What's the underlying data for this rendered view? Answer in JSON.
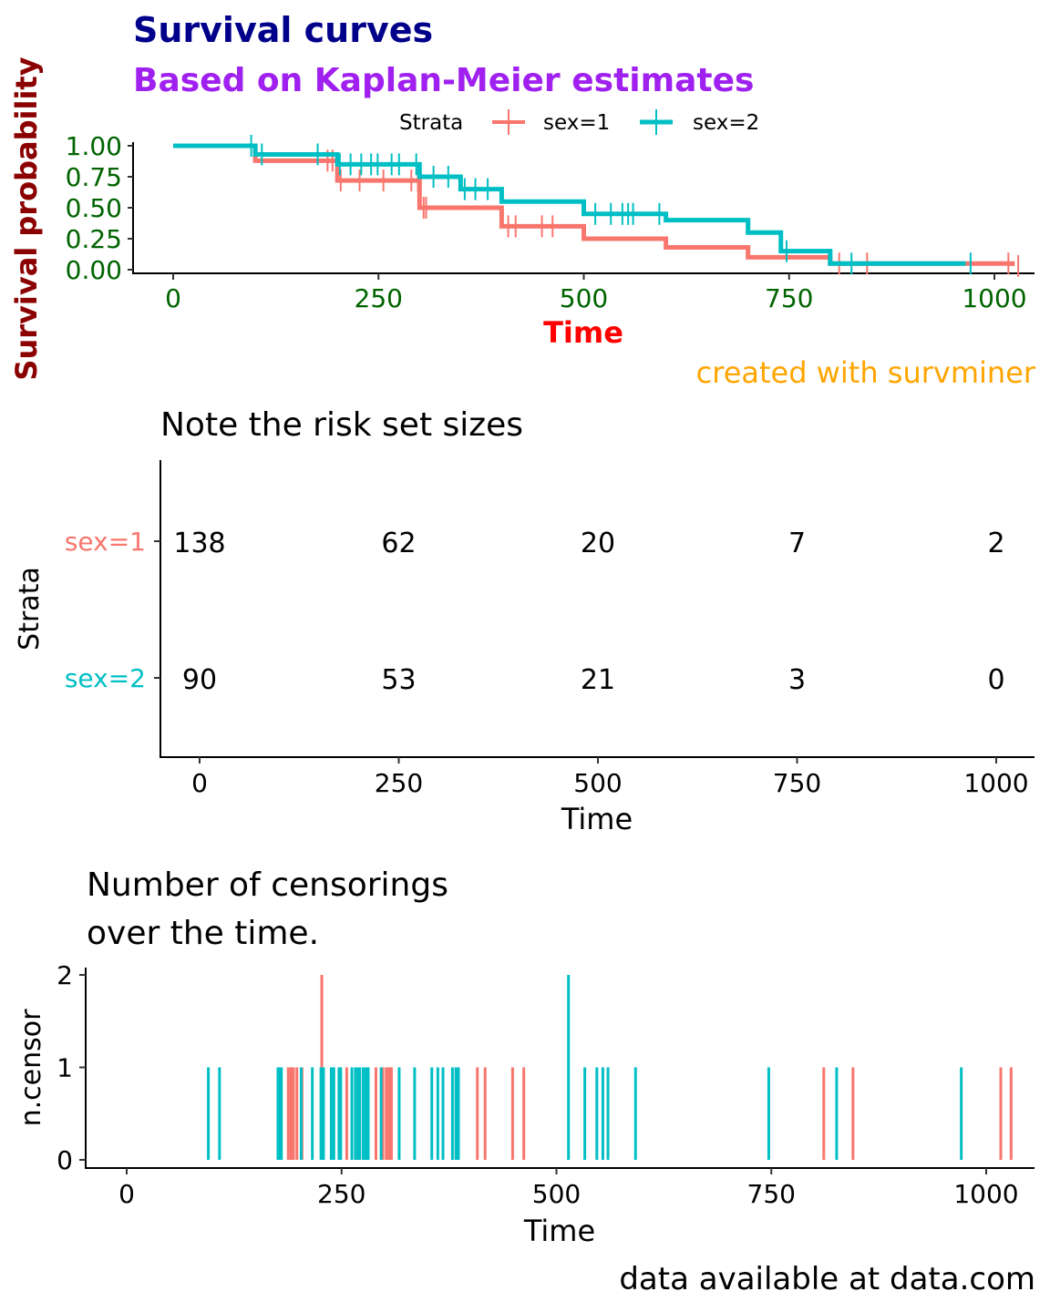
{
  "colors": {
    "sex1": "#F8766D",
    "sex2": "#00BFC4",
    "title": "#00008B",
    "subtitle": "#A020F0",
    "ylabel": "#8B0000",
    "ticks": "#006400",
    "xlabel": "#FF0000",
    "caption": "#FFA500"
  },
  "chart_data": [
    {
      "type": "line",
      "title": "Survival curves",
      "subtitle": "Based on Kaplan-Meier estimates",
      "xlabel": "Time",
      "ylabel": "Survival probability",
      "caption": "created with survminer",
      "legend": {
        "title": "Strata",
        "position": "top",
        "entries": [
          "sex=1",
          "sex=2"
        ]
      },
      "xlim": [
        0,
        1022
      ],
      "ylim": [
        0,
        1
      ],
      "xticks": [
        "0",
        "250",
        "500",
        "750",
        "1000"
      ],
      "yticks": [
        "0.00",
        "0.25",
        "0.50",
        "0.75",
        "1.00"
      ],
      "series": [
        {
          "name": "sex=1",
          "x": [
            0,
            100,
            200,
            300,
            400,
            500,
            600,
            700,
            800,
            1022
          ],
          "y": [
            1,
            0.88,
            0.72,
            0.5,
            0.35,
            0.25,
            0.18,
            0.1,
            0.05,
            0.03
          ],
          "censor_x": [
            188,
            194,
            204,
            227,
            256,
            290,
            298,
            305,
            308,
            408,
            417,
            449,
            462,
            811,
            845,
            1017,
            1029
          ]
        },
        {
          "name": "sex=2",
          "x": [
            0,
            100,
            200,
            300,
            350,
            400,
            500,
            600,
            700,
            740,
            800,
            965
          ],
          "y": [
            1,
            0.93,
            0.85,
            0.75,
            0.65,
            0.55,
            0.45,
            0.4,
            0.3,
            0.15,
            0.05,
            0.05
          ],
          "censor_x": [
            95,
            108,
            176,
            203,
            216,
            229,
            241,
            249,
            266,
            275,
            296,
            317,
            335,
            355,
            368,
            383,
            514,
            533,
            547,
            554,
            560,
            592,
            747,
            826,
            971
          ]
        }
      ]
    },
    {
      "type": "table",
      "title": "Note the risk set sizes",
      "xlabel": "Time",
      "ylabel": "Strata",
      "xticks": [
        "0",
        "250",
        "500",
        "750",
        "1000"
      ],
      "times": [
        0,
        250,
        500,
        750,
        1000
      ],
      "rows": [
        {
          "name": "sex=1",
          "values": [
            "138",
            "62",
            "20",
            "7",
            "2"
          ]
        },
        {
          "name": "sex=2",
          "values": [
            "90",
            "53",
            "21",
            "3",
            "0"
          ]
        }
      ]
    },
    {
      "type": "bar",
      "title": "Number of censorings\nover the time.",
      "title_lines": [
        "Number of censorings",
        "over the time."
      ],
      "xlabel": "Time",
      "ylabel": "n.censor",
      "caption": "data available at data.com",
      "xticks": [
        "0",
        "250",
        "500",
        "750",
        "1000"
      ],
      "yticks": [
        "0",
        "1",
        "2"
      ],
      "ylim": [
        0,
        2
      ],
      "series": [
        {
          "name": "sex=1",
          "x": [
            188,
            191,
            194,
            198,
            204,
            227,
            256,
            290,
            298,
            302,
            305,
            308,
            408,
            417,
            449,
            462,
            811,
            845,
            1017,
            1029
          ],
          "y": [
            1,
            1,
            1,
            1,
            1,
            2,
            1,
            1,
            1,
            1,
            1,
            1,
            1,
            1,
            1,
            1,
            1,
            1,
            1,
            1
          ]
        },
        {
          "name": "sex=2",
          "x": [
            95,
            108,
            176,
            178,
            180,
            203,
            216,
            226,
            229,
            238,
            241,
            247,
            249,
            262,
            266,
            269,
            271,
            275,
            278,
            281,
            296,
            317,
            335,
            355,
            362,
            368,
            379,
            383,
            386,
            514,
            533,
            547,
            554,
            560,
            592,
            747,
            826,
            971
          ],
          "y": [
            1,
            1,
            1,
            1,
            1,
            1,
            1,
            1,
            1,
            1,
            1,
            1,
            1,
            1,
            1,
            1,
            1,
            1,
            1,
            1,
            1,
            1,
            1,
            1,
            1,
            1,
            1,
            1,
            1,
            2,
            1,
            1,
            1,
            1,
            1,
            1,
            1,
            1
          ]
        }
      ]
    }
  ]
}
